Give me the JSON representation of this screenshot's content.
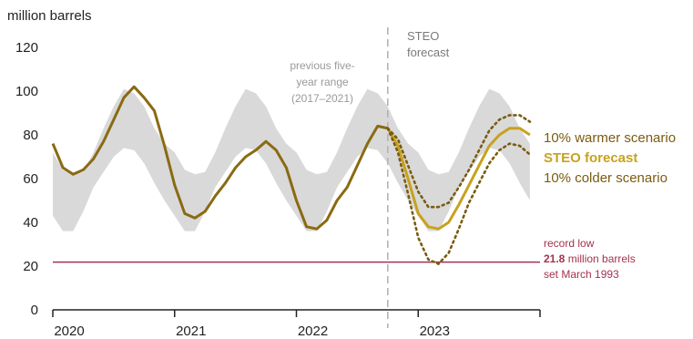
{
  "chart_data": {
    "type": "line",
    "ylabel": "million barrels",
    "ylim": [
      0,
      120
    ],
    "yticks": [
      0,
      20,
      40,
      60,
      80,
      100,
      120
    ],
    "xticks": [
      "2020",
      "2021",
      "2022",
      "2023"
    ],
    "xlim": [
      "2020-01",
      "2023-12"
    ],
    "grid": false,
    "range_band": {
      "label": [
        "previous five-",
        "year range",
        "(2017–2021)"
      ],
      "months": [
        "Jan",
        "Feb",
        "Mar",
        "Apr",
        "May",
        "Jun",
        "Jul",
        "Aug",
        "Sep",
        "Oct",
        "Nov",
        "Dec"
      ],
      "min": [
        43,
        36,
        36,
        45,
        56,
        63,
        70,
        74,
        73,
        67,
        58,
        50
      ],
      "max": [
        72,
        64,
        62,
        63,
        72,
        83,
        93,
        101,
        99,
        93,
        83,
        76
      ]
    },
    "forecast_divider": {
      "x": "2022-10",
      "label": [
        "STEO",
        "forecast"
      ]
    },
    "series": [
      {
        "name": "STEO forecast",
        "style": "solid",
        "color": "#a07c14",
        "x": [
          "2020-01",
          "2020-02",
          "2020-03",
          "2020-04",
          "2020-05",
          "2020-06",
          "2020-07",
          "2020-08",
          "2020-09",
          "2020-10",
          "2020-11",
          "2020-12",
          "2021-01",
          "2021-02",
          "2021-03",
          "2021-04",
          "2021-05",
          "2021-06",
          "2021-07",
          "2021-08",
          "2021-09",
          "2021-10",
          "2021-11",
          "2021-12",
          "2022-01",
          "2022-02",
          "2022-03",
          "2022-04",
          "2022-05",
          "2022-06",
          "2022-07",
          "2022-08",
          "2022-09",
          "2022-10",
          "2022-11",
          "2022-12",
          "2023-01",
          "2023-02",
          "2023-03",
          "2023-04",
          "2023-05",
          "2023-06",
          "2023-07",
          "2023-08",
          "2023-09",
          "2023-10",
          "2023-11",
          "2023-12"
        ],
        "values": [
          76,
          65,
          62,
          64,
          69,
          77,
          87,
          97,
          102,
          97,
          91,
          75,
          57,
          44,
          42,
          45,
          52,
          58,
          65,
          70,
          73,
          77,
          73,
          65,
          50,
          38,
          37,
          41,
          50,
          56,
          66,
          76,
          84,
          83,
          75,
          60,
          44,
          38,
          37,
          40,
          48,
          57,
          66,
          75,
          80,
          83,
          83,
          80
        ]
      },
      {
        "name": "10% warmer scenario",
        "style": "dotted",
        "color": "#7a5c10",
        "x": [
          "2022-10",
          "2022-11",
          "2022-12",
          "2023-01",
          "2023-02",
          "2023-03",
          "2023-04",
          "2023-05",
          "2023-06",
          "2023-07",
          "2023-08",
          "2023-09",
          "2023-10",
          "2023-11",
          "2023-12"
        ],
        "values": [
          83,
          78,
          66,
          54,
          47,
          47,
          49,
          56,
          64,
          73,
          82,
          87,
          89,
          89,
          86
        ]
      },
      {
        "name": "10% colder scenario",
        "style": "dotted",
        "color": "#7a5c10",
        "x": [
          "2022-10",
          "2022-11",
          "2022-12",
          "2023-01",
          "2023-02",
          "2023-03",
          "2023-04",
          "2023-05",
          "2023-06",
          "2023-07",
          "2023-08",
          "2023-09",
          "2023-10",
          "2023-11",
          "2023-12"
        ],
        "values": [
          83,
          72,
          53,
          33,
          23,
          21,
          26,
          37,
          49,
          58,
          67,
          73,
          76,
          75,
          71
        ]
      }
    ],
    "reference_line": {
      "value": 21.8,
      "color": "#a3324f",
      "label_lines": [
        "record low",
        "21.8",
        " million barrels",
        "set March 1993"
      ]
    },
    "labels_right": {
      "warmer": "10% warmer scenario",
      "forecast": "STEO forecast",
      "colder": "10% colder scenario"
    },
    "colors": {
      "band": "#d9d9d9",
      "forecast": "#c8a21f",
      "history": "#8a6a12",
      "divider": "#b0b0b0",
      "axis": "#222222"
    }
  }
}
